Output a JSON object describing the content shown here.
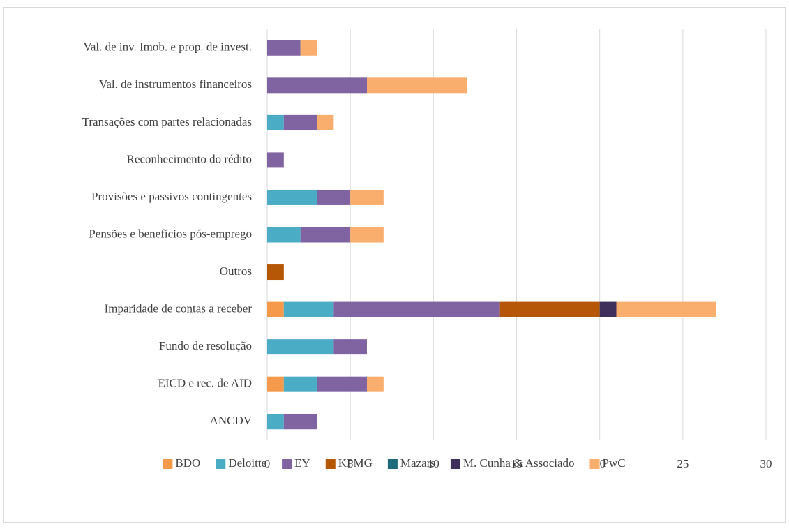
{
  "chart_data": {
    "type": "stacked-barh",
    "categories": [
      "Val. de inv. Imob. e prop. de invest.",
      "Val. de instrumentos financeiros",
      "Transações com partes relacionadas",
      "Reconhecimento do rédito",
      "Provisões e passivos contingentes ",
      "Pensões e benefícios pós-emprego",
      "Outros",
      "Imparidade de contas a receber ",
      "Fundo de resolução",
      "EICD e rec. de AID",
      "ANCDV"
    ],
    "series": [
      {
        "name": "BDO",
        "color": "#f59a4a",
        "values": [
          0,
          0,
          0,
          0,
          0,
          0,
          0,
          1,
          0,
          1,
          0
        ]
      },
      {
        "name": "Deloitte",
        "color": "#4bacc6",
        "values": [
          0,
          0,
          1,
          0,
          3,
          2,
          0,
          3,
          4,
          2,
          1
        ]
      },
      {
        "name": "EY",
        "color": "#8064a2",
        "values": [
          2,
          6,
          2,
          1,
          2,
          3,
          0,
          10,
          2,
          3,
          2
        ]
      },
      {
        "name": "KPMG",
        "color": "#b65708",
        "values": [
          0,
          0,
          0,
          0,
          0,
          0,
          1,
          6,
          0,
          0,
          0
        ]
      },
      {
        "name": "Mazars",
        "color": "#1f6b7a",
        "values": [
          0,
          0,
          0,
          0,
          0,
          0,
          0,
          0,
          0,
          0,
          0
        ]
      },
      {
        "name": "M. Cunha & Associado",
        "color": "#3f2f5b",
        "values": [
          0,
          0,
          0,
          0,
          0,
          0,
          0,
          1,
          0,
          0,
          0
        ]
      },
      {
        "name": "PwC",
        "color": "#f9ae6e",
        "values": [
          1,
          6,
          1,
          0,
          2,
          2,
          0,
          6,
          0,
          1,
          0
        ]
      }
    ],
    "xlim": [
      0,
      30
    ],
    "xticks": [
      0,
      5,
      10,
      15,
      20,
      25,
      30
    ],
    "grid": true,
    "legend": "bottom"
  }
}
